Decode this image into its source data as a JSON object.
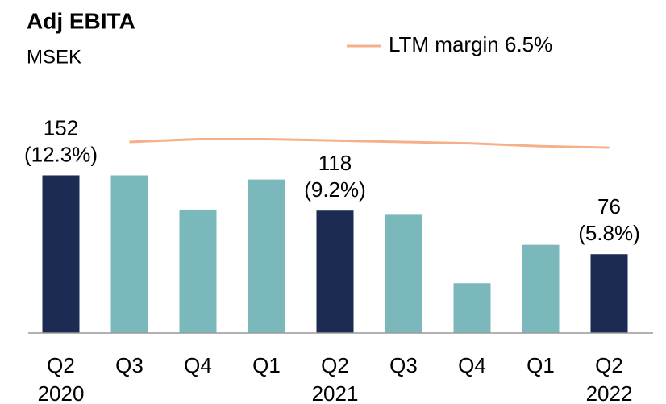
{
  "chart_data": {
    "type": "bar",
    "title": "Adj EBITA",
    "subtitle": "MSEK",
    "categories": [
      "Q2 2020",
      "Q3",
      "Q4",
      "Q1",
      "Q2 2021",
      "Q3",
      "Q4",
      "Q1",
      "Q2 2022"
    ],
    "values": [
      152,
      152,
      119,
      148,
      118,
      114,
      48,
      85,
      76
    ],
    "value_labels": [
      "152 (12.3%)",
      null,
      null,
      null,
      "118 (9.2%)",
      null,
      null,
      null,
      "76 (5.8%)"
    ],
    "colors": [
      "#1c2b52",
      "#7bb8bb",
      "#7bb8bb",
      "#7bb8bb",
      "#1c2b52",
      "#7bb8bb",
      "#7bb8bb",
      "#7bb8bb",
      "#1c2b52"
    ],
    "ylim": [
      0,
      220
    ],
    "series": [
      {
        "name": "LTM margin 6.5%",
        "color": "#f5b08a",
        "axis": "y2",
        "type": "line",
        "values": [
          null,
          6.7,
          6.8,
          6.8,
          6.75,
          6.7,
          6.65,
          6.55,
          6.5
        ]
      }
    ],
    "y2lim": [
      0,
      8
    ],
    "legend": "top-right"
  }
}
